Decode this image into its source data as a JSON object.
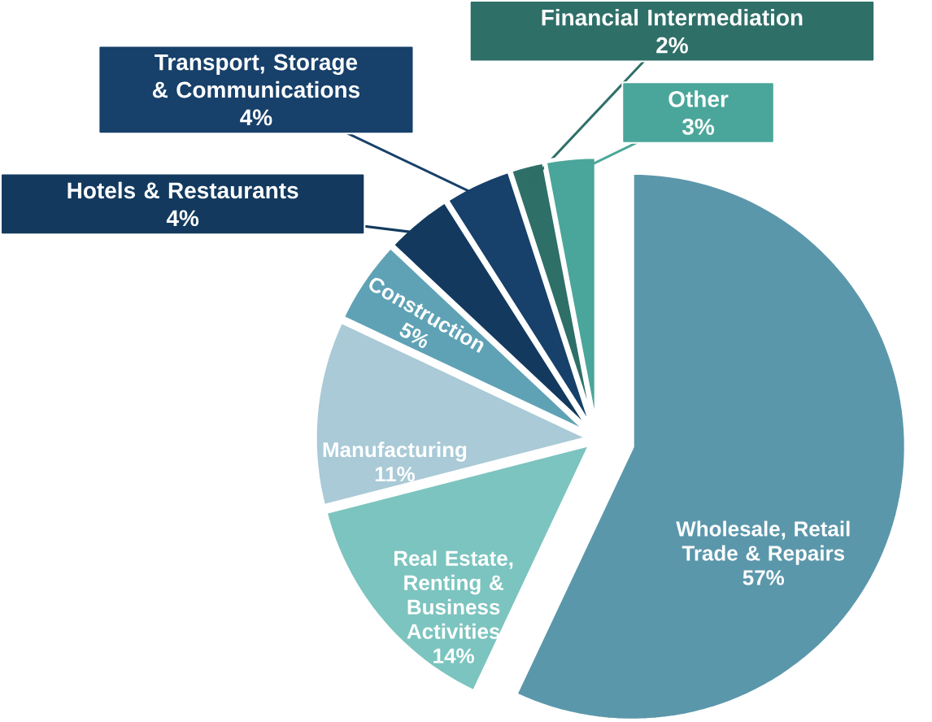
{
  "chart_data": {
    "type": "pie",
    "categories": [
      "Wholesale, Retail Trade & Repairs",
      "Real Estate, Renting & Business Activities",
      "Manufacturing",
      "Construction",
      "Hotels & Restaurants",
      "Transport, Storage & Communications",
      "Financial Intermediation",
      "Other"
    ],
    "values": [
      57,
      14,
      11,
      5,
      4,
      4,
      2,
      3
    ],
    "colors": [
      "#5b97ab",
      "#7cc4bf",
      "#a9cad6",
      "#5fa2b5",
      "#133a5e",
      "#17406a",
      "#2e6f68",
      "#4aa69a"
    ],
    "value_labels": [
      "57%",
      "14%",
      "11%",
      "5%",
      "4%",
      "4%",
      "2%",
      "3%"
    ]
  }
}
